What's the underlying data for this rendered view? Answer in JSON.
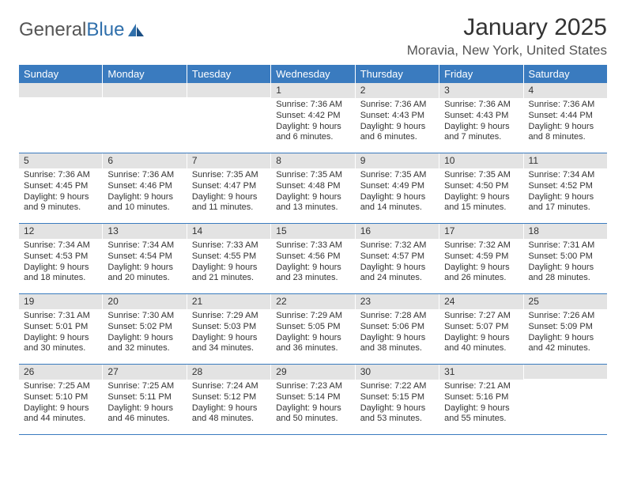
{
  "logo": {
    "text1": "General",
    "text2": "Blue"
  },
  "title": "January 2025",
  "location": "Moravia, New York, United States",
  "colors": {
    "header_bg": "#3a7bbf",
    "header_text": "#ffffff",
    "daynum_bg": "#e3e3e3",
    "rule": "#3a7bbf",
    "logo_gray": "#555555",
    "logo_blue": "#2f6fab"
  },
  "days_of_week": [
    "Sunday",
    "Monday",
    "Tuesday",
    "Wednesday",
    "Thursday",
    "Friday",
    "Saturday"
  ],
  "weeks": [
    [
      {
        "num": "",
        "lines": []
      },
      {
        "num": "",
        "lines": []
      },
      {
        "num": "",
        "lines": []
      },
      {
        "num": "1",
        "lines": [
          "Sunrise: 7:36 AM",
          "Sunset: 4:42 PM",
          "Daylight: 9 hours",
          "and 6 minutes."
        ]
      },
      {
        "num": "2",
        "lines": [
          "Sunrise: 7:36 AM",
          "Sunset: 4:43 PM",
          "Daylight: 9 hours",
          "and 6 minutes."
        ]
      },
      {
        "num": "3",
        "lines": [
          "Sunrise: 7:36 AM",
          "Sunset: 4:43 PM",
          "Daylight: 9 hours",
          "and 7 minutes."
        ]
      },
      {
        "num": "4",
        "lines": [
          "Sunrise: 7:36 AM",
          "Sunset: 4:44 PM",
          "Daylight: 9 hours",
          "and 8 minutes."
        ]
      }
    ],
    [
      {
        "num": "5",
        "lines": [
          "Sunrise: 7:36 AM",
          "Sunset: 4:45 PM",
          "Daylight: 9 hours",
          "and 9 minutes."
        ]
      },
      {
        "num": "6",
        "lines": [
          "Sunrise: 7:36 AM",
          "Sunset: 4:46 PM",
          "Daylight: 9 hours",
          "and 10 minutes."
        ]
      },
      {
        "num": "7",
        "lines": [
          "Sunrise: 7:35 AM",
          "Sunset: 4:47 PM",
          "Daylight: 9 hours",
          "and 11 minutes."
        ]
      },
      {
        "num": "8",
        "lines": [
          "Sunrise: 7:35 AM",
          "Sunset: 4:48 PM",
          "Daylight: 9 hours",
          "and 13 minutes."
        ]
      },
      {
        "num": "9",
        "lines": [
          "Sunrise: 7:35 AM",
          "Sunset: 4:49 PM",
          "Daylight: 9 hours",
          "and 14 minutes."
        ]
      },
      {
        "num": "10",
        "lines": [
          "Sunrise: 7:35 AM",
          "Sunset: 4:50 PM",
          "Daylight: 9 hours",
          "and 15 minutes."
        ]
      },
      {
        "num": "11",
        "lines": [
          "Sunrise: 7:34 AM",
          "Sunset: 4:52 PM",
          "Daylight: 9 hours",
          "and 17 minutes."
        ]
      }
    ],
    [
      {
        "num": "12",
        "lines": [
          "Sunrise: 7:34 AM",
          "Sunset: 4:53 PM",
          "Daylight: 9 hours",
          "and 18 minutes."
        ]
      },
      {
        "num": "13",
        "lines": [
          "Sunrise: 7:34 AM",
          "Sunset: 4:54 PM",
          "Daylight: 9 hours",
          "and 20 minutes."
        ]
      },
      {
        "num": "14",
        "lines": [
          "Sunrise: 7:33 AM",
          "Sunset: 4:55 PM",
          "Daylight: 9 hours",
          "and 21 minutes."
        ]
      },
      {
        "num": "15",
        "lines": [
          "Sunrise: 7:33 AM",
          "Sunset: 4:56 PM",
          "Daylight: 9 hours",
          "and 23 minutes."
        ]
      },
      {
        "num": "16",
        "lines": [
          "Sunrise: 7:32 AM",
          "Sunset: 4:57 PM",
          "Daylight: 9 hours",
          "and 24 minutes."
        ]
      },
      {
        "num": "17",
        "lines": [
          "Sunrise: 7:32 AM",
          "Sunset: 4:59 PM",
          "Daylight: 9 hours",
          "and 26 minutes."
        ]
      },
      {
        "num": "18",
        "lines": [
          "Sunrise: 7:31 AM",
          "Sunset: 5:00 PM",
          "Daylight: 9 hours",
          "and 28 minutes."
        ]
      }
    ],
    [
      {
        "num": "19",
        "lines": [
          "Sunrise: 7:31 AM",
          "Sunset: 5:01 PM",
          "Daylight: 9 hours",
          "and 30 minutes."
        ]
      },
      {
        "num": "20",
        "lines": [
          "Sunrise: 7:30 AM",
          "Sunset: 5:02 PM",
          "Daylight: 9 hours",
          "and 32 minutes."
        ]
      },
      {
        "num": "21",
        "lines": [
          "Sunrise: 7:29 AM",
          "Sunset: 5:03 PM",
          "Daylight: 9 hours",
          "and 34 minutes."
        ]
      },
      {
        "num": "22",
        "lines": [
          "Sunrise: 7:29 AM",
          "Sunset: 5:05 PM",
          "Daylight: 9 hours",
          "and 36 minutes."
        ]
      },
      {
        "num": "23",
        "lines": [
          "Sunrise: 7:28 AM",
          "Sunset: 5:06 PM",
          "Daylight: 9 hours",
          "and 38 minutes."
        ]
      },
      {
        "num": "24",
        "lines": [
          "Sunrise: 7:27 AM",
          "Sunset: 5:07 PM",
          "Daylight: 9 hours",
          "and 40 minutes."
        ]
      },
      {
        "num": "25",
        "lines": [
          "Sunrise: 7:26 AM",
          "Sunset: 5:09 PM",
          "Daylight: 9 hours",
          "and 42 minutes."
        ]
      }
    ],
    [
      {
        "num": "26",
        "lines": [
          "Sunrise: 7:25 AM",
          "Sunset: 5:10 PM",
          "Daylight: 9 hours",
          "and 44 minutes."
        ]
      },
      {
        "num": "27",
        "lines": [
          "Sunrise: 7:25 AM",
          "Sunset: 5:11 PM",
          "Daylight: 9 hours",
          "and 46 minutes."
        ]
      },
      {
        "num": "28",
        "lines": [
          "Sunrise: 7:24 AM",
          "Sunset: 5:12 PM",
          "Daylight: 9 hours",
          "and 48 minutes."
        ]
      },
      {
        "num": "29",
        "lines": [
          "Sunrise: 7:23 AM",
          "Sunset: 5:14 PM",
          "Daylight: 9 hours",
          "and 50 minutes."
        ]
      },
      {
        "num": "30",
        "lines": [
          "Sunrise: 7:22 AM",
          "Sunset: 5:15 PM",
          "Daylight: 9 hours",
          "and 53 minutes."
        ]
      },
      {
        "num": "31",
        "lines": [
          "Sunrise: 7:21 AM",
          "Sunset: 5:16 PM",
          "Daylight: 9 hours",
          "and 55 minutes."
        ]
      },
      {
        "num": "",
        "lines": []
      }
    ]
  ]
}
